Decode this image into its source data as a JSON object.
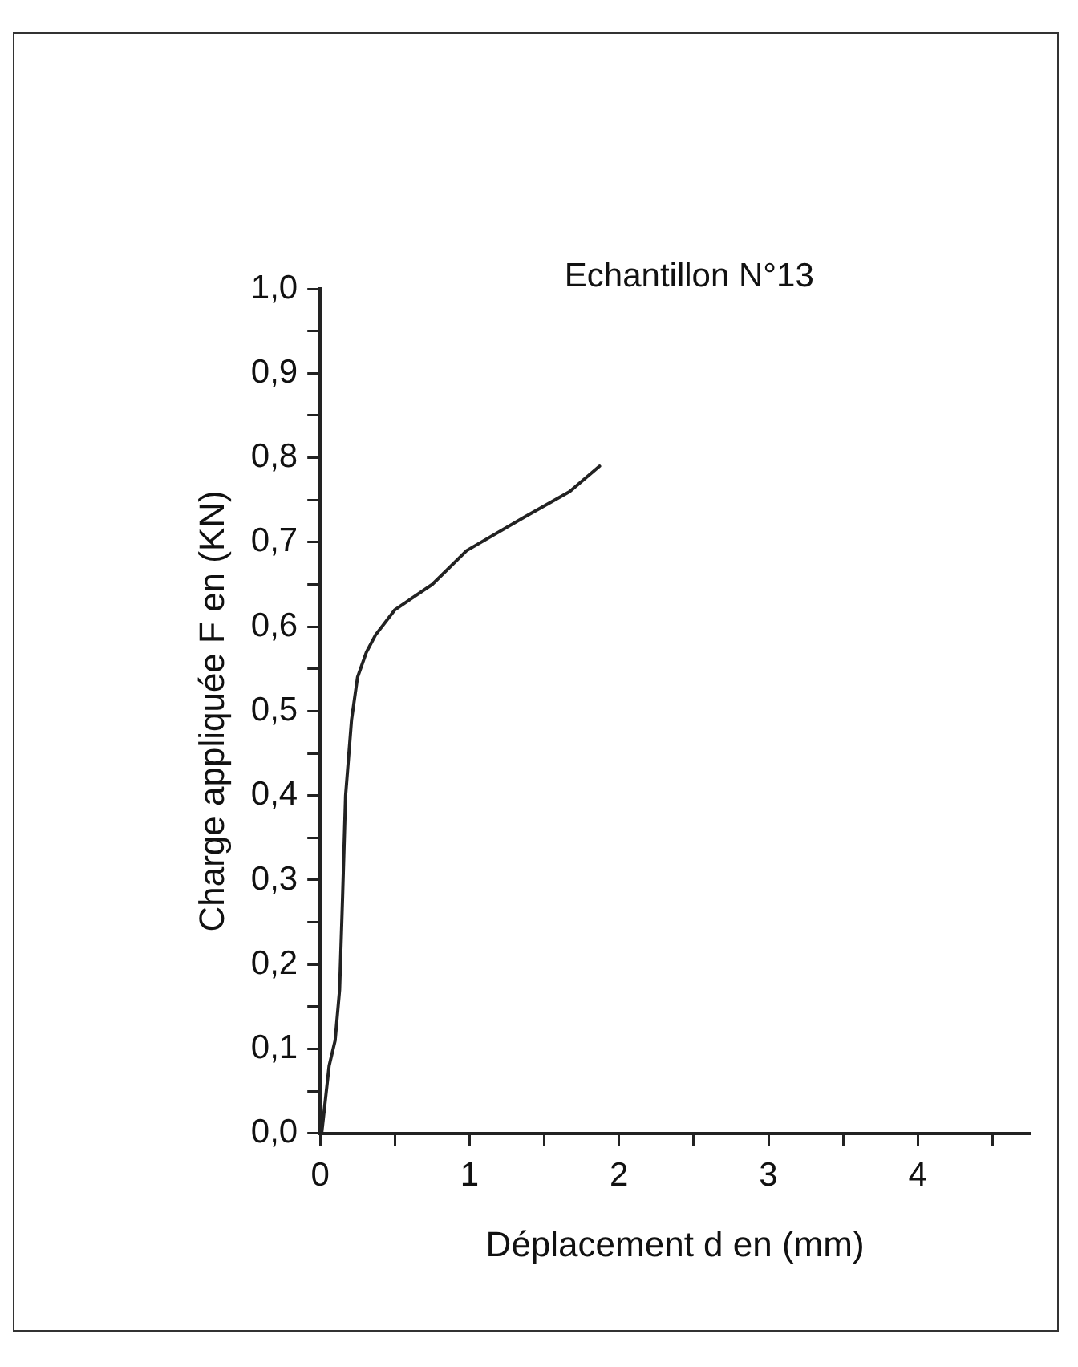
{
  "chart_data": {
    "type": "line",
    "title": "Echantillon N°13",
    "xlabel": "Déplacement d en (mm)",
    "ylabel": "Charge appliquée F en (KN)",
    "xlim": [
      0,
      4.75
    ],
    "xticks": [
      0,
      {
        "value": 0.5,
        "label": null
      },
      1,
      {
        "value": 1.5,
        "label": null
      },
      2,
      {
        "value": 2.5,
        "label": null
      },
      3,
      {
        "value": 3.5,
        "label": null
      },
      4,
      {
        "value": 4.5,
        "label": null
      }
    ],
    "ylim": [
      0,
      1.0
    ],
    "yticks": [
      {
        "value": 0,
        "label": "0,0"
      },
      {
        "value": 0.05,
        "label": null
      },
      {
        "value": 0.1,
        "label": "0,1"
      },
      {
        "value": 0.15,
        "label": null
      },
      {
        "value": 0.2,
        "label": "0,2"
      },
      {
        "value": 0.25,
        "label": null
      },
      {
        "value": 0.3,
        "label": "0,3"
      },
      {
        "value": 0.35,
        "label": null
      },
      {
        "value": 0.4,
        "label": "0,4"
      },
      {
        "value": 0.45,
        "label": null
      },
      {
        "value": 0.5,
        "label": "0,5"
      },
      {
        "value": 0.55,
        "label": null
      },
      {
        "value": 0.6,
        "label": "0,6"
      },
      {
        "value": 0.65,
        "label": null
      },
      {
        "value": 0.7,
        "label": "0,7"
      },
      {
        "value": 0.75,
        "label": null
      },
      {
        "value": 0.8,
        "label": "0,8"
      },
      {
        "value": 0.85,
        "label": null
      },
      {
        "value": 0.9,
        "label": "0,9"
      },
      {
        "value": 0.95,
        "label": null
      },
      {
        "value": 1.0,
        "label": "1,0"
      }
    ],
    "grid": false,
    "legend": false,
    "marker": "none",
    "line_style": "solid",
    "series": [
      {
        "color": "#222222",
        "x": [
          0.01,
          0.06,
          0.1,
          0.13,
          0.15,
          0.17,
          0.21,
          0.25,
          0.31,
          0.37,
          0.5,
          0.75,
          0.98,
          1.37,
          1.67,
          1.87
        ],
        "values": [
          0.0,
          0.08,
          0.11,
          0.17,
          0.28,
          0.4,
          0.49,
          0.54,
          0.57,
          0.59,
          0.62,
          0.65,
          0.69,
          0.73,
          0.76,
          0.79
        ]
      }
    ]
  }
}
